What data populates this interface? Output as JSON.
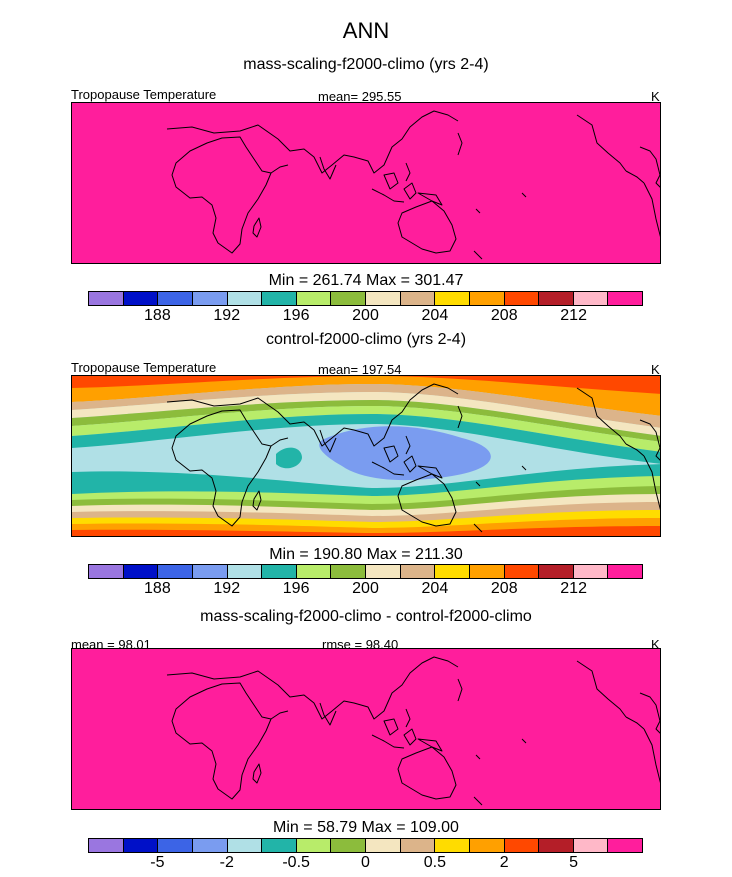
{
  "title": "ANN",
  "colors": [
    "#9a76e0",
    "#0010c8",
    "#3c64e6",
    "#7a9cf0",
    "#b0e0e6",
    "#22b4a8",
    "#b8ec6a",
    "#8cbc3c",
    "#f4e6c0",
    "#dcb48a",
    "#ffdc00",
    "#ffa000",
    "#ff4800",
    "#b41e28",
    "#ffb8c8",
    "#ff1e9c"
  ],
  "panels": [
    {
      "title": "mass-scaling-f2000-climo (yrs 2-4)",
      "left_label": "Tropopause Temperature",
      "center_label": "mean= 295.55",
      "units": "K",
      "minmax": "Min = 261.74 Max = 301.47",
      "ticks": [
        "188",
        "192",
        "196",
        "200",
        "204",
        "208",
        "212"
      ]
    },
    {
      "title": "control-f2000-climo (yrs 2-4)",
      "left_label": "Tropopause Temperature",
      "center_label": "mean= 197.54",
      "units": "K",
      "minmax": "Min = 190.80 Max = 211.30",
      "ticks": [
        "188",
        "192",
        "196",
        "200",
        "204",
        "208",
        "212"
      ]
    },
    {
      "title": "mass-scaling-f2000-climo - control-f2000-climo",
      "left_label": "mean =  98.01",
      "center_label": "rmse =  98.40",
      "units": "K",
      "minmax": "Min =  58.79 Max = 109.00",
      "ticks": [
        "-5",
        "-2",
        "-0.5",
        "0",
        "0.5",
        "2",
        "5"
      ]
    }
  ],
  "chart_data": [
    {
      "type": "heatmap",
      "title": "mass-scaling-f2000-climo (yrs 2-4)",
      "variable": "Tropopause Temperature",
      "units": "K",
      "mean": 295.55,
      "min": 261.74,
      "max": 301.47,
      "levels": [
        186,
        188,
        190,
        192,
        194,
        196,
        198,
        200,
        202,
        204,
        206,
        208,
        210,
        212,
        214
      ],
      "colorbar_labels": [
        188,
        192,
        196,
        200,
        204,
        208,
        212
      ],
      "field": "uniform above top level (all magenta)"
    },
    {
      "type": "heatmap",
      "title": "control-f2000-climo (yrs 2-4)",
      "variable": "Tropopause Temperature",
      "units": "K",
      "mean": 197.54,
      "min": 190.8,
      "max": 211.3,
      "levels": [
        186,
        188,
        190,
        192,
        194,
        196,
        198,
        200,
        202,
        204,
        206,
        208,
        210,
        212,
        214
      ],
      "colorbar_labels": [
        188,
        192,
        196,
        200,
        204,
        208,
        212
      ],
      "field": "zonal bands: coldest (~190-192) over tropical Maritime Continent, warming poleward to ~210 at high latitudes"
    },
    {
      "type": "heatmap",
      "title": "mass-scaling-f2000-climo - control-f2000-climo",
      "units": "K",
      "mean": 98.01,
      "rmse": 98.4,
      "min": 58.79,
      "max": 109.0,
      "levels": [
        -8,
        -5,
        -3,
        -2,
        -1,
        -0.5,
        -0.25,
        0,
        0.25,
        0.5,
        1,
        2,
        3,
        5,
        8
      ],
      "colorbar_labels": [
        -5,
        -2,
        -0.5,
        0,
        0.5,
        2,
        5
      ],
      "field": "uniform above top level (all magenta)"
    }
  ]
}
